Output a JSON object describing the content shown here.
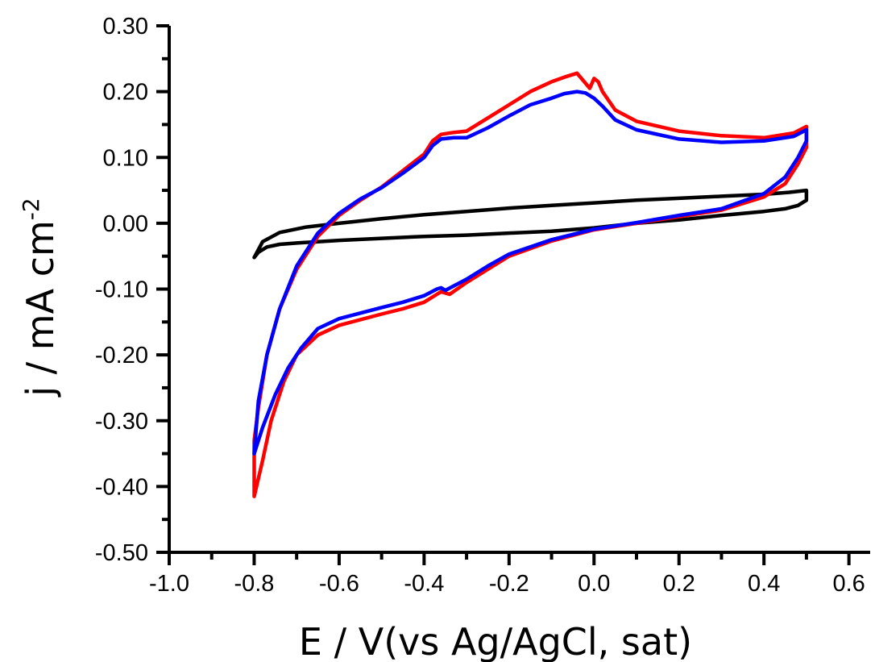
{
  "chart_data": {
    "type": "line",
    "xlabel": "E / V(vs Ag/AgCl, sat)",
    "ylabel": "j / mA cm",
    "ylabel_sup": "-2",
    "xlim": [
      -1.0,
      0.65
    ],
    "ylim": [
      -0.5,
      0.3
    ],
    "x_ticks": [
      -1.0,
      -0.8,
      -0.6,
      -0.4,
      -0.2,
      0.0,
      0.2,
      0.4,
      0.6
    ],
    "x_tick_labels": [
      "-1.0",
      "-0.8",
      "-0.6",
      "-0.4",
      "-0.2",
      "0.0",
      "0.2",
      "0.4",
      "0.6"
    ],
    "y_ticks": [
      0.3,
      0.2,
      0.1,
      0.0,
      -0.1,
      -0.2,
      -0.3,
      -0.4,
      -0.5
    ],
    "y_tick_labels": [
      "0.30",
      "0.20",
      "0.10",
      "0.00",
      "-0.10",
      "-0.20",
      "-0.30",
      "-0.40",
      "-0.50"
    ],
    "grid": false,
    "series": [
      {
        "color": "#000000",
        "points": [
          [
            -0.8,
            -0.052
          ],
          [
            -0.79,
            -0.044
          ],
          [
            -0.77,
            -0.036
          ],
          [
            -0.74,
            -0.032
          ],
          [
            -0.7,
            -0.03
          ],
          [
            -0.6,
            -0.026
          ],
          [
            -0.5,
            -0.023
          ],
          [
            -0.4,
            -0.02
          ],
          [
            -0.3,
            -0.018
          ],
          [
            -0.2,
            -0.015
          ],
          [
            -0.1,
            -0.012
          ],
          [
            0.0,
            -0.007
          ],
          [
            0.1,
            0.0
          ],
          [
            0.2,
            0.005
          ],
          [
            0.3,
            0.012
          ],
          [
            0.4,
            0.018
          ],
          [
            0.45,
            0.022
          ],
          [
            0.48,
            0.027
          ],
          [
            0.5,
            0.035
          ],
          [
            0.5,
            0.05
          ],
          [
            0.46,
            0.047
          ],
          [
            0.4,
            0.044
          ],
          [
            0.3,
            0.041
          ],
          [
            0.2,
            0.038
          ],
          [
            0.1,
            0.035
          ],
          [
            0.0,
            0.031
          ],
          [
            -0.1,
            0.027
          ],
          [
            -0.2,
            0.023
          ],
          [
            -0.3,
            0.018
          ],
          [
            -0.4,
            0.013
          ],
          [
            -0.5,
            0.007
          ],
          [
            -0.6,
            0.0
          ],
          [
            -0.68,
            -0.006
          ],
          [
            -0.74,
            -0.014
          ],
          [
            -0.78,
            -0.028
          ],
          [
            -0.8,
            -0.052
          ]
        ]
      },
      {
        "color": "#ff0000",
        "points": [
          [
            -0.8,
            -0.415
          ],
          [
            -0.78,
            -0.36
          ],
          [
            -0.76,
            -0.3
          ],
          [
            -0.73,
            -0.24
          ],
          [
            -0.7,
            -0.2
          ],
          [
            -0.65,
            -0.17
          ],
          [
            -0.6,
            -0.155
          ],
          [
            -0.5,
            -0.138
          ],
          [
            -0.45,
            -0.13
          ],
          [
            -0.4,
            -0.12
          ],
          [
            -0.37,
            -0.108
          ],
          [
            -0.36,
            -0.104
          ],
          [
            -0.34,
            -0.108
          ],
          [
            -0.3,
            -0.09
          ],
          [
            -0.25,
            -0.07
          ],
          [
            -0.2,
            -0.05
          ],
          [
            -0.1,
            -0.027
          ],
          [
            0.0,
            -0.01
          ],
          [
            0.1,
            0.0
          ],
          [
            0.2,
            0.01
          ],
          [
            0.3,
            0.02
          ],
          [
            0.4,
            0.04
          ],
          [
            0.45,
            0.06
          ],
          [
            0.48,
            0.09
          ],
          [
            0.5,
            0.115
          ],
          [
            0.5,
            0.147
          ],
          [
            0.47,
            0.137
          ],
          [
            0.4,
            0.13
          ],
          [
            0.3,
            0.133
          ],
          [
            0.2,
            0.14
          ],
          [
            0.1,
            0.155
          ],
          [
            0.05,
            0.172
          ],
          [
            0.02,
            0.2
          ],
          [
            0.01,
            0.215
          ],
          [
            0.0,
            0.22
          ],
          [
            -0.01,
            0.205
          ],
          [
            -0.04,
            0.228
          ],
          [
            -0.07,
            0.222
          ],
          [
            -0.1,
            0.215
          ],
          [
            -0.15,
            0.2
          ],
          [
            -0.2,
            0.18
          ],
          [
            -0.25,
            0.16
          ],
          [
            -0.3,
            0.14
          ],
          [
            -0.33,
            0.138
          ],
          [
            -0.36,
            0.135
          ],
          [
            -0.38,
            0.125
          ],
          [
            -0.4,
            0.105
          ],
          [
            -0.45,
            0.08
          ],
          [
            -0.5,
            0.055
          ],
          [
            -0.55,
            0.035
          ],
          [
            -0.6,
            0.012
          ],
          [
            -0.65,
            -0.02
          ],
          [
            -0.7,
            -0.07
          ],
          [
            -0.74,
            -0.13
          ],
          [
            -0.77,
            -0.2
          ],
          [
            -0.79,
            -0.28
          ],
          [
            -0.8,
            -0.33
          ],
          [
            -0.8,
            -0.415
          ]
        ]
      },
      {
        "color": "#0000ff",
        "points": [
          [
            -0.8,
            -0.35
          ],
          [
            -0.78,
            -0.31
          ],
          [
            -0.75,
            -0.26
          ],
          [
            -0.72,
            -0.22
          ],
          [
            -0.69,
            -0.19
          ],
          [
            -0.65,
            -0.16
          ],
          [
            -0.6,
            -0.145
          ],
          [
            -0.5,
            -0.128
          ],
          [
            -0.45,
            -0.12
          ],
          [
            -0.4,
            -0.11
          ],
          [
            -0.37,
            -0.1
          ],
          [
            -0.36,
            -0.098
          ],
          [
            -0.35,
            -0.102
          ],
          [
            -0.3,
            -0.085
          ],
          [
            -0.25,
            -0.065
          ],
          [
            -0.2,
            -0.047
          ],
          [
            -0.1,
            -0.025
          ],
          [
            0.0,
            -0.009
          ],
          [
            0.1,
            0.001
          ],
          [
            0.2,
            0.012
          ],
          [
            0.3,
            0.022
          ],
          [
            0.4,
            0.045
          ],
          [
            0.45,
            0.07
          ],
          [
            0.48,
            0.1
          ],
          [
            0.5,
            0.125
          ],
          [
            0.5,
            0.142
          ],
          [
            0.47,
            0.132
          ],
          [
            0.4,
            0.125
          ],
          [
            0.3,
            0.123
          ],
          [
            0.2,
            0.128
          ],
          [
            0.1,
            0.142
          ],
          [
            0.05,
            0.157
          ],
          [
            0.02,
            0.178
          ],
          [
            0.0,
            0.19
          ],
          [
            -0.02,
            0.198
          ],
          [
            -0.04,
            0.2
          ],
          [
            -0.07,
            0.197
          ],
          [
            -0.1,
            0.19
          ],
          [
            -0.15,
            0.18
          ],
          [
            -0.2,
            0.163
          ],
          [
            -0.25,
            0.145
          ],
          [
            -0.3,
            0.13
          ],
          [
            -0.33,
            0.13
          ],
          [
            -0.36,
            0.128
          ],
          [
            -0.38,
            0.118
          ],
          [
            -0.4,
            0.1
          ],
          [
            -0.45,
            0.076
          ],
          [
            -0.5,
            0.054
          ],
          [
            -0.55,
            0.037
          ],
          [
            -0.6,
            0.015
          ],
          [
            -0.65,
            -0.015
          ],
          [
            -0.7,
            -0.065
          ],
          [
            -0.74,
            -0.13
          ],
          [
            -0.77,
            -0.2
          ],
          [
            -0.79,
            -0.27
          ],
          [
            -0.8,
            -0.35
          ]
        ]
      }
    ]
  }
}
